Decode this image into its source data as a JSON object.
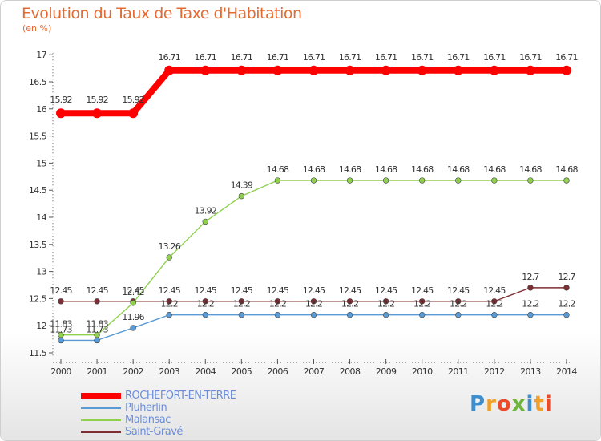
{
  "title": "Evolution du Taux de Taxe d'Habitation",
  "subtitle": "(en %)",
  "brand": {
    "text": "Proxiti"
  },
  "chart_data": {
    "type": "line",
    "title": "Evolution du Taux de Taxe d'Habitation",
    "ylabel": "(en %)",
    "xlabel": "",
    "ylim": [
      11.5,
      17
    ],
    "y_ticks": [
      "11.5",
      "12",
      "12.5",
      "13",
      "13.5",
      "14",
      "14.5",
      "15",
      "15.5",
      "16",
      "16.5",
      "17"
    ],
    "x": [
      "2000",
      "2001",
      "2002",
      "2003",
      "2004",
      "2005",
      "2006",
      "2007",
      "2008",
      "2009",
      "2010",
      "2011",
      "2012",
      "2013",
      "2014"
    ],
    "grid": false,
    "legend_position": "bottom-left",
    "series": [
      {
        "name": "ROCHEFORT-EN-TERRE",
        "color": "#ff0000",
        "values": [
          15.92,
          15.92,
          15.92,
          16.71,
          16.71,
          16.71,
          16.71,
          16.71,
          16.71,
          16.71,
          16.71,
          16.71,
          16.71,
          16.71,
          16.71
        ],
        "labels": [
          "15.92",
          "15.92",
          "15.92",
          "16.71",
          "16.71",
          "16.71",
          "16.71",
          "16.71",
          "16.71",
          "16.71",
          "16.71",
          "16.71",
          "16.71",
          "16.71",
          "16.71"
        ]
      },
      {
        "name": "Pluherlin",
        "color": "#5b9bd5",
        "values": [
          11.73,
          11.73,
          11.96,
          12.2,
          12.2,
          12.2,
          12.2,
          12.2,
          12.2,
          12.2,
          12.2,
          12.2,
          12.2,
          12.2,
          12.2
        ],
        "labels": [
          "11.73",
          "11.73",
          "11.96",
          "12.2",
          "12.2",
          "12.2",
          "12.2",
          "12.2",
          "12.2",
          "12.2",
          "12.2",
          "12.2",
          "12.2",
          "12.2",
          "12.2"
        ]
      },
      {
        "name": "Malansac",
        "color": "#8fd14f",
        "values": [
          11.83,
          11.83,
          12.42,
          13.26,
          13.92,
          14.39,
          14.68,
          14.68,
          14.68,
          14.68,
          14.68,
          14.68,
          14.68,
          14.68,
          14.68
        ],
        "labels": [
          "11.83",
          "11.83",
          "12.42",
          "13.26",
          "13.92",
          "14.39",
          "14.68",
          "14.68",
          "14.68",
          "14.68",
          "14.68",
          "14.68",
          "14.68",
          "14.68",
          "14.68"
        ]
      },
      {
        "name": "Saint-Gravé",
        "color": "#7d2e32",
        "values": [
          12.45,
          12.45,
          12.45,
          12.45,
          12.45,
          12.45,
          12.45,
          12.45,
          12.45,
          12.45,
          12.45,
          12.45,
          12.45,
          12.7,
          12.7
        ],
        "labels": [
          "12.45",
          "12.45",
          "12.45",
          "12.45",
          "12.45",
          "12.45",
          "12.45",
          "12.45",
          "12.45",
          "12.45",
          "12.45",
          "12.45",
          "12.45",
          "12.7",
          "12.7"
        ]
      }
    ]
  }
}
